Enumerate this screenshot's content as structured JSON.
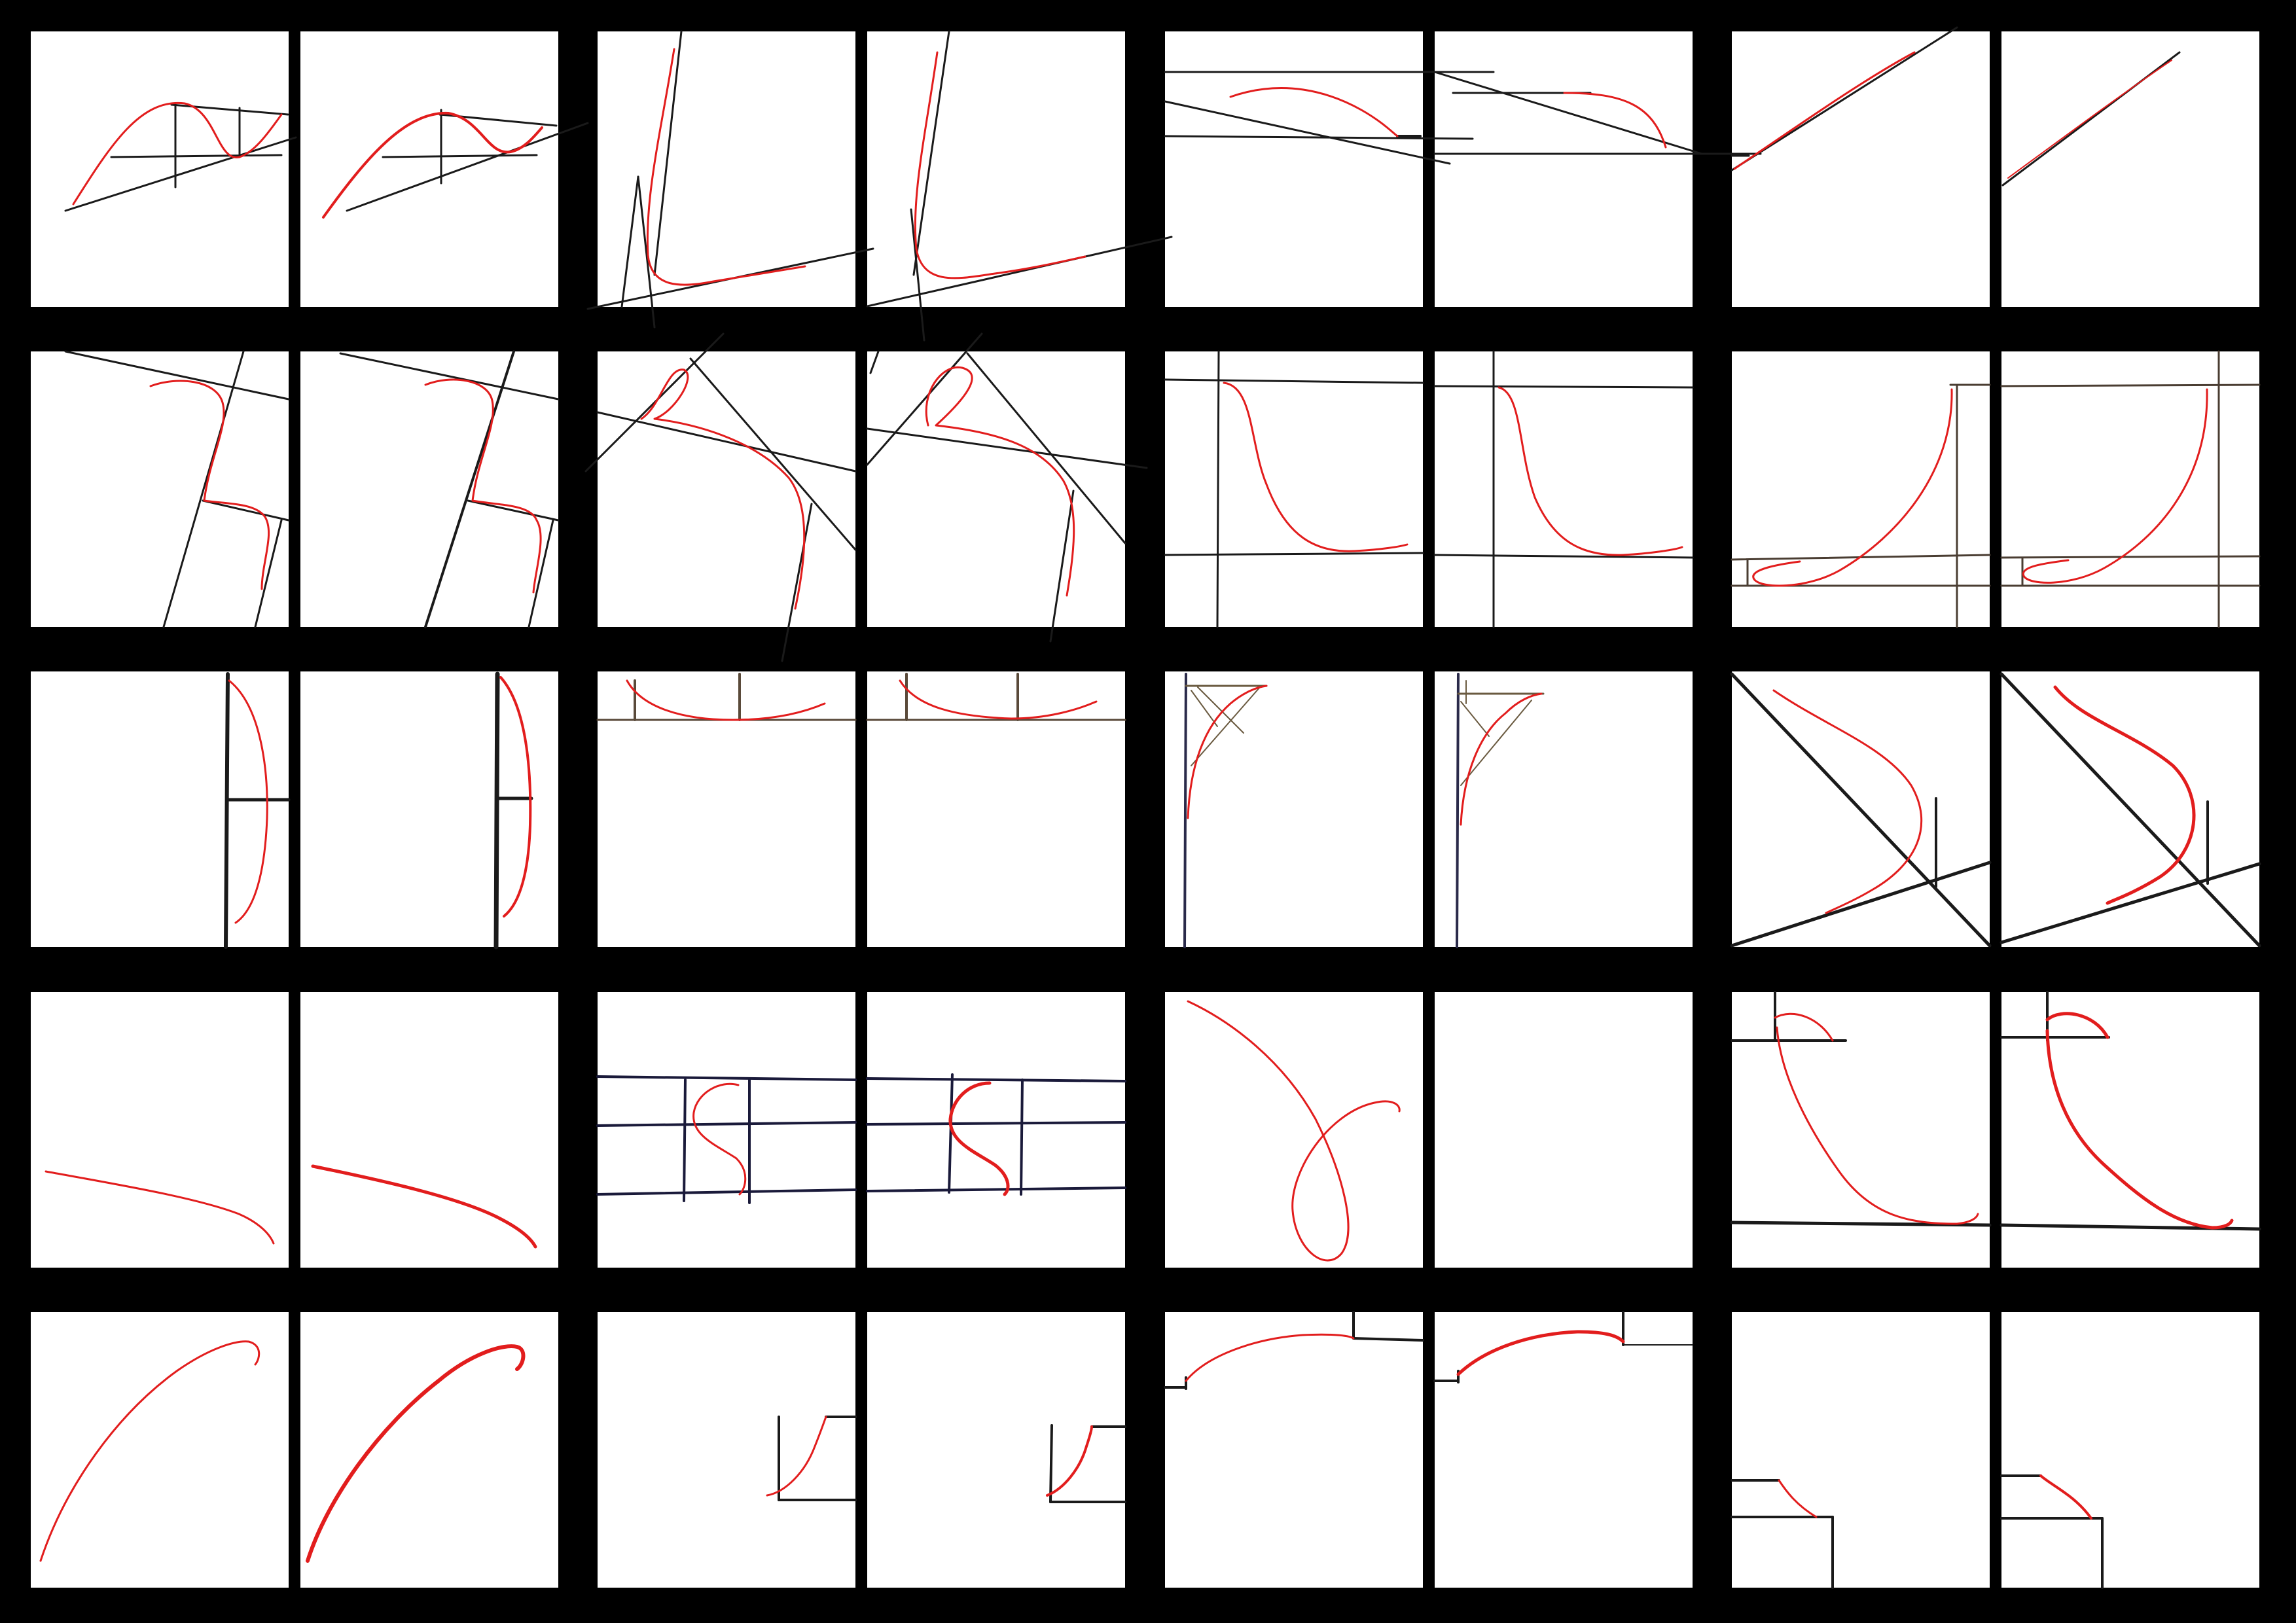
{
  "sheet": {
    "description_free": true,
    "background_color": "#000000",
    "panel_color": "#ffffff",
    "guide_color": "#1a1a1a",
    "curve_color": "#e21d1d",
    "rows": 5,
    "pairs_per_row": 4,
    "panels_per_pair": 2
  },
  "pairs": [
    {
      "row": 0,
      "col": 0
    },
    {
      "row": 0,
      "col": 1
    },
    {
      "row": 0,
      "col": 2
    },
    {
      "row": 0,
      "col": 3
    },
    {
      "row": 1,
      "col": 0
    },
    {
      "row": 1,
      "col": 1
    },
    {
      "row": 1,
      "col": 2
    },
    {
      "row": 1,
      "col": 3
    },
    {
      "row": 2,
      "col": 0
    },
    {
      "row": 2,
      "col": 1
    },
    {
      "row": 2,
      "col": 2
    },
    {
      "row": 2,
      "col": 3
    },
    {
      "row": 3,
      "col": 0
    },
    {
      "row": 3,
      "col": 1
    },
    {
      "row": 3,
      "col": 2
    },
    {
      "row": 3,
      "col": 3
    },
    {
      "row": 4,
      "col": 0
    },
    {
      "row": 4,
      "col": 1
    },
    {
      "row": 4,
      "col": 2
    },
    {
      "row": 4,
      "col": 3
    }
  ]
}
